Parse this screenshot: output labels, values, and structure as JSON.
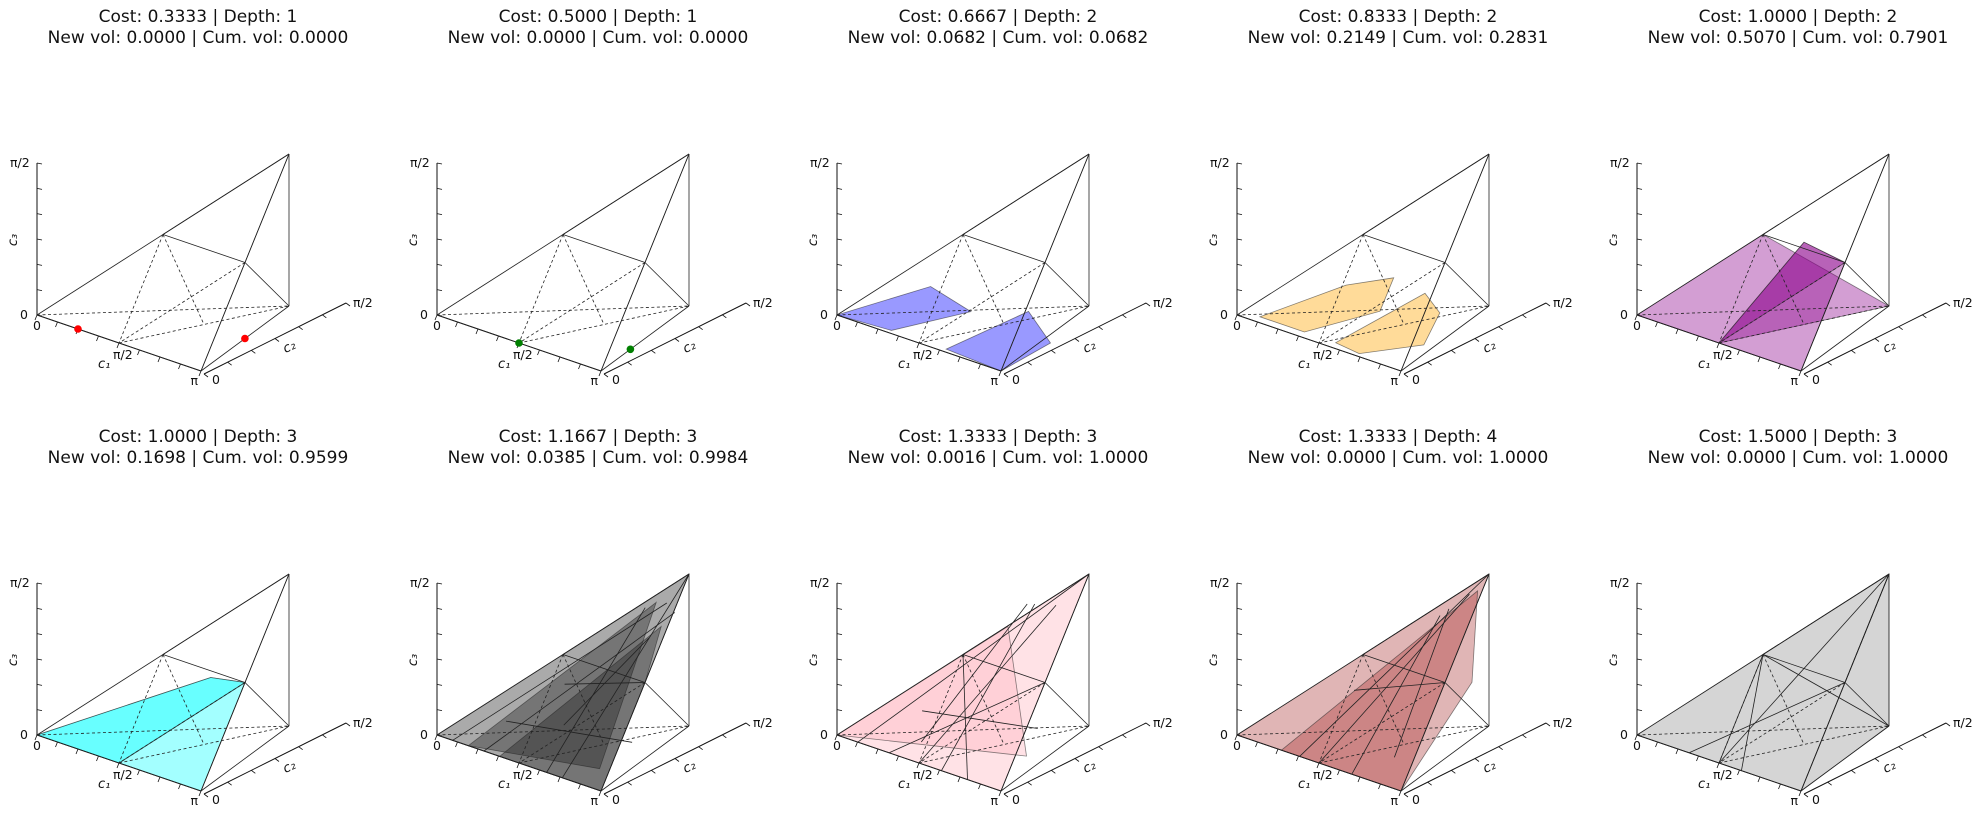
{
  "figure": {
    "axes": {
      "x_label": "c₁",
      "y_label": "c₂",
      "z_label": "c₃",
      "x_ticks": [
        "0",
        "π/2",
        "π"
      ],
      "y_ticks": [
        "0",
        "π/2"
      ],
      "z_ticks": [
        "0",
        "π/2"
      ]
    }
  },
  "chart_data": [
    {
      "type": "3d-polytope",
      "title_line1": "Cost: 0.3333 | Depth: 1",
      "title_line2": "New vol: 0.0000 | Cum. vol: 0.0000",
      "cost": 0.3333,
      "depth": 1,
      "new_vol": 0.0,
      "cum_vol": 0.0,
      "fill": "none",
      "marker_color": "#ff0000",
      "points": [
        [
          0.785,
          0.0,
          0.0
        ],
        [
          2.356,
          0.785,
          0.0
        ]
      ]
    },
    {
      "type": "3d-polytope",
      "title_line1": "Cost: 0.5000 | Depth: 1",
      "title_line2": "New vol: 0.0000 | Cum. vol: 0.0000",
      "cost": 0.5,
      "depth": 1,
      "new_vol": 0.0,
      "cum_vol": 0.0,
      "fill": "none",
      "marker_color": "#008000",
      "points": [
        [
          1.571,
          0.0,
          0.0
        ],
        [
          2.618,
          0.524,
          0.0
        ]
      ]
    },
    {
      "type": "3d-polytope",
      "title_line1": "Cost: 0.6667 | Depth: 2",
      "title_line2": "New vol: 0.0682 | Cum. vol: 0.0682",
      "cost": 0.6667,
      "depth": 2,
      "new_vol": 0.0682,
      "cum_vol": 0.0682,
      "fill": "#0000ff"
    },
    {
      "type": "3d-polytope",
      "title_line1": "Cost: 0.8333 | Depth: 2",
      "title_line2": "New vol: 0.2149 | Cum. vol: 0.2831",
      "cost": 0.8333,
      "depth": 2,
      "new_vol": 0.2149,
      "cum_vol": 0.2831,
      "fill": "#ffa500"
    },
    {
      "type": "3d-polytope",
      "title_line1": "Cost: 1.0000 | Depth: 2",
      "title_line2": "New vol: 0.5070 | Cum. vol: 0.7901",
      "cost": 1.0,
      "depth": 2,
      "new_vol": 0.507,
      "cum_vol": 0.7901,
      "fill": "#8b008b"
    },
    {
      "type": "3d-polytope",
      "title_line1": "Cost: 1.0000 | Depth: 3",
      "title_line2": "New vol: 0.1698 | Cum. vol: 0.9599",
      "cost": 1.0,
      "depth": 3,
      "new_vol": 0.1698,
      "cum_vol": 0.9599,
      "fill": "#00ffff"
    },
    {
      "type": "3d-polytope",
      "title_line1": "Cost: 1.1667 | Depth: 3",
      "title_line2": "New vol: 0.0385 | Cum. vol: 0.9984",
      "cost": 1.1667,
      "depth": 3,
      "new_vol": 0.0385,
      "cum_vol": 0.9984,
      "fill": "#202020"
    },
    {
      "type": "3d-polytope",
      "title_line1": "Cost: 1.3333 | Depth: 3",
      "title_line2": "New vol: 0.0016 | Cum. vol: 1.0000",
      "cost": 1.3333,
      "depth": 3,
      "new_vol": 0.0016,
      "cum_vol": 1.0,
      "fill": "#ffb6c1"
    },
    {
      "type": "3d-polytope",
      "title_line1": "Cost: 1.3333 | Depth: 4",
      "title_line2": "New vol: 0.0000 | Cum. vol: 1.0000",
      "cost": 1.3333,
      "depth": 4,
      "new_vol": 0.0,
      "cum_vol": 1.0,
      "fill": "#a52a2a"
    },
    {
      "type": "3d-polytope",
      "title_line1": "Cost: 1.5000 | Depth: 3",
      "title_line2": "New vol: 0.0000 | Cum. vol: 1.0000",
      "cost": 1.5,
      "depth": 3,
      "new_vol": 0.0,
      "cum_vol": 1.0,
      "fill": "#808080"
    }
  ]
}
